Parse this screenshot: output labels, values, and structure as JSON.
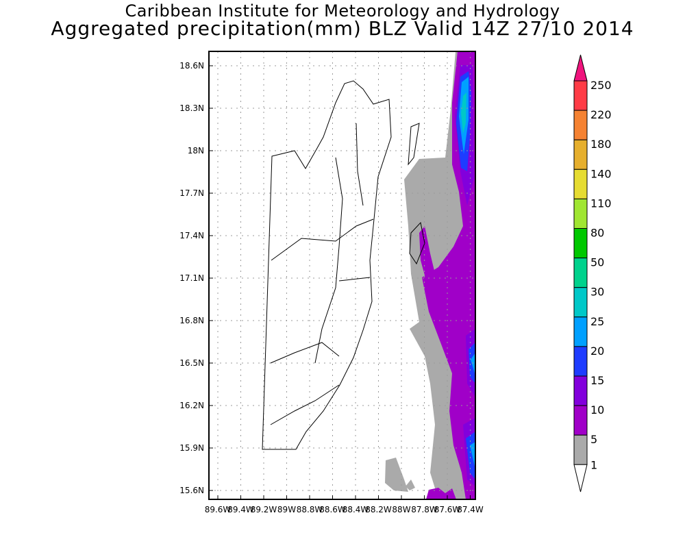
{
  "title": {
    "line1": "Caribbean Institute for Meteorology and Hydrology",
    "line2": "Aggregated precipitation(mm) BLZ Valid 14Z 27/10 2014"
  },
  "map": {
    "lat_ticks": [
      "18.6N",
      "18.3N",
      "18N",
      "17.7N",
      "17.4N",
      "17.1N",
      "16.8N",
      "16.5N",
      "16.2N",
      "15.9N",
      "15.6N"
    ],
    "lon_ticks": [
      "89.6W",
      "89.4W",
      "89.2W",
      "89W",
      "88.8W",
      "88.6W",
      "88.4W",
      "88.2W",
      "88W",
      "87.8W",
      "87.6W",
      "87.4W"
    ]
  },
  "colorbar": {
    "labels": [
      "250",
      "220",
      "180",
      "140",
      "110",
      "80",
      "50",
      "30",
      "25",
      "20",
      "15",
      "10",
      "5",
      "1"
    ],
    "colors": [
      "#ff3c46",
      "#f58232",
      "#e6af2d",
      "#e6dc32",
      "#a0e632",
      "#00c800",
      "#00d28c",
      "#00c8c8",
      "#00a0ff",
      "#1e3cff",
      "#8200dc",
      "#a000c8",
      "#aaaaaa"
    ],
    "over_color": "#f0147d",
    "under_color": "#ffffff"
  }
}
